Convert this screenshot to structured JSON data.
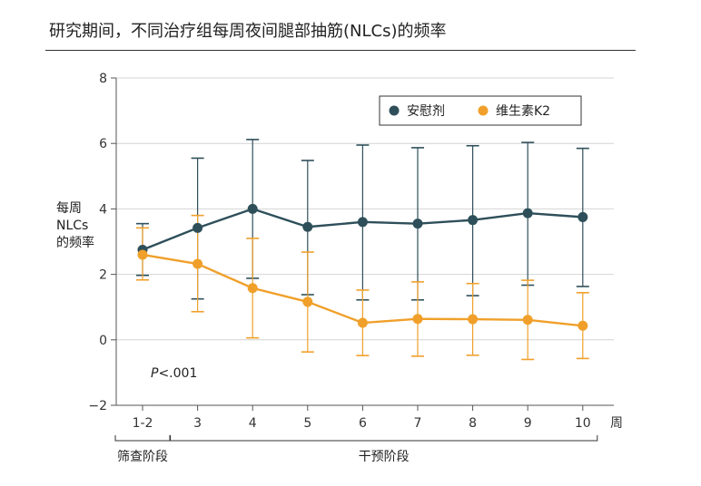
{
  "title": "研究期间，不同治疗组每周夜间腿部抽筋(NLCs)的频率",
  "chart_data": {
    "type": "line",
    "title": "研究期间，不同治疗组每周夜间腿部抽筋(NLCs)的频率",
    "ylabel_lines": [
      "每周",
      "NLCs",
      "的频率"
    ],
    "xlabel": "周",
    "categories": [
      "1-2",
      "3",
      "4",
      "5",
      "6",
      "7",
      "8",
      "9",
      "10"
    ],
    "ylim": [
      -2,
      8
    ],
    "yticks": [
      -2,
      0,
      2,
      4,
      6,
      8
    ],
    "ytick_labels": [
      "−2",
      "0",
      "2",
      "4",
      "6",
      "8"
    ],
    "grid": true,
    "legend_position": "top-right",
    "annotation": "P<.001",
    "annotation_parts": {
      "italic": "P",
      "rest": "<.001"
    },
    "phases": [
      {
        "label": "筛查阶段",
        "from": "1-2",
        "to": "1-2"
      },
      {
        "label": "干预阶段",
        "from": "3",
        "to": "10"
      }
    ],
    "series": [
      {
        "name": "安慰剂",
        "color": "#2e4f5a",
        "values": [
          2.75,
          3.42,
          4.0,
          3.45,
          3.6,
          3.55,
          3.66,
          3.87,
          3.75
        ],
        "err_upper": [
          3.55,
          5.55,
          6.12,
          5.48,
          5.95,
          5.87,
          5.93,
          6.03,
          5.85
        ],
        "err_lower": [
          1.97,
          1.25,
          1.88,
          1.38,
          1.22,
          1.22,
          1.35,
          1.67,
          1.63
        ]
      },
      {
        "name": "维生素K2",
        "color": "#f0a02a",
        "values": [
          2.6,
          2.32,
          1.58,
          1.16,
          0.52,
          0.64,
          0.63,
          0.61,
          0.43
        ],
        "err_upper": [
          3.42,
          3.8,
          3.1,
          2.68,
          1.52,
          1.77,
          1.72,
          1.82,
          1.44
        ],
        "err_lower": [
          1.83,
          0.86,
          0.06,
          -0.37,
          -0.48,
          -0.5,
          -0.47,
          -0.6,
          -0.57
        ]
      }
    ]
  }
}
